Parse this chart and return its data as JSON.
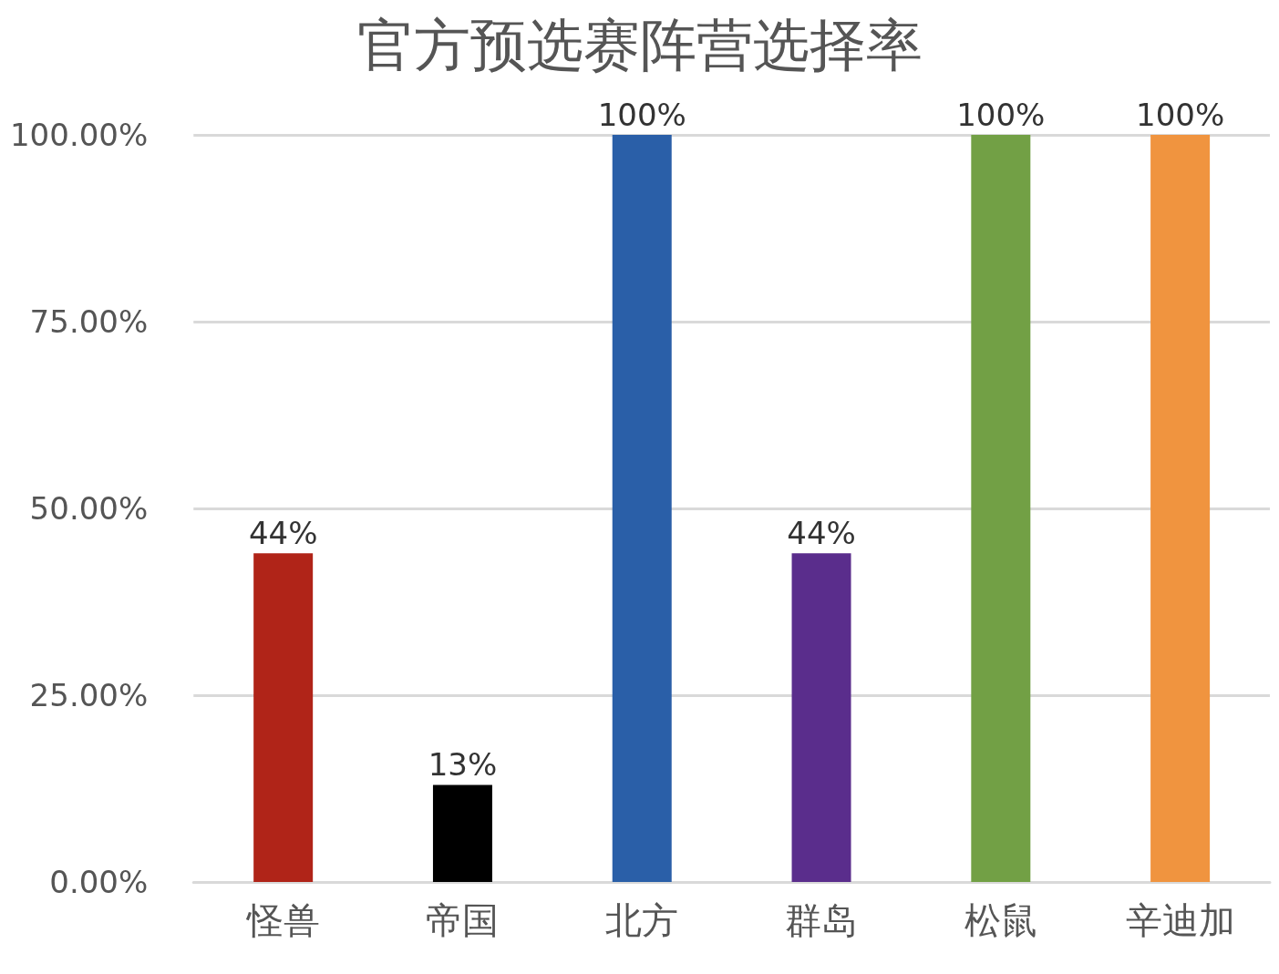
{
  "chart_data": {
    "type": "bar",
    "title": "官方预选赛阵营选择率",
    "categories": [
      "怪兽",
      "帝国",
      "北方",
      "群岛",
      "松鼠",
      "辛迪加"
    ],
    "values": [
      44,
      13,
      100,
      44,
      100,
      100
    ],
    "value_labels": [
      "44%",
      "13%",
      "100%",
      "44%",
      "100%",
      "100%"
    ],
    "colors": [
      "#b02418",
      "#000000",
      "#2a5fa8",
      "#5a2d8c",
      "#72a045",
      "#f0943f"
    ],
    "ylim": [
      0,
      100
    ],
    "yticks": [
      {
        "value": 0,
        "label": "0.00%"
      },
      {
        "value": 25,
        "label": "25.00%"
      },
      {
        "value": 50,
        "label": "50.00%"
      },
      {
        "value": 75,
        "label": "75.00%"
      },
      {
        "value": 100,
        "label": "100.00%"
      }
    ],
    "grid": "y"
  }
}
